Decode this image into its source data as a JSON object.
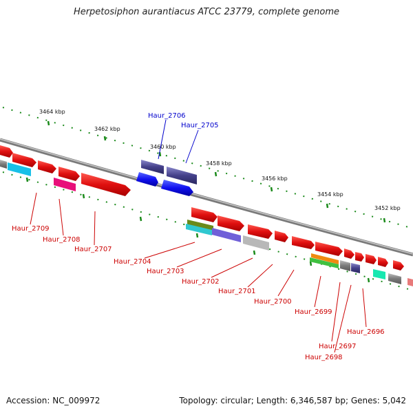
{
  "title": "Herpetosiphon aurantiacus ATCC 23779, complete genome",
  "footer": {
    "accession": "Accession: NC_009972",
    "summary": "Topology: circular; Length: 6,346,587 bp; Genes: 5,042"
  },
  "ticks": [
    {
      "label": "3464 kbp",
      "pos": 3464
    },
    {
      "label": "3462 kbp",
      "pos": 3462
    },
    {
      "label": "3460 kbp",
      "pos": 3460
    },
    {
      "label": "3458 kbp",
      "pos": 3458
    },
    {
      "label": "3456 kbp",
      "pos": 3456
    },
    {
      "label": "3454 kbp",
      "pos": 3454
    },
    {
      "label": "3452 kbp",
      "pos": 3452
    }
  ],
  "gene_labels": [
    {
      "id": "Haur_2706",
      "color": "#0000cc"
    },
    {
      "id": "Haur_2705",
      "color": "#0000cc"
    },
    {
      "id": "Haur_2709",
      "color": "#cc0000"
    },
    {
      "id": "Haur_2708",
      "color": "#cc0000"
    },
    {
      "id": "Haur_2707",
      "color": "#cc0000"
    },
    {
      "id": "Haur_2704",
      "color": "#cc0000"
    },
    {
      "id": "Haur_2703",
      "color": "#cc0000"
    },
    {
      "id": "Haur_2702",
      "color": "#cc0000"
    },
    {
      "id": "Haur_2701",
      "color": "#cc0000"
    },
    {
      "id": "Haur_2700",
      "color": "#cc0000"
    },
    {
      "id": "Haur_2699",
      "color": "#cc0000"
    },
    {
      "id": "Haur_2697",
      "color": "#cc0000"
    },
    {
      "id": "Haur_2698",
      "color": "#cc0000"
    },
    {
      "id": "Haur_2696",
      "color": "#cc0000"
    }
  ],
  "colors": {
    "backbone": "#8a8a8a",
    "tick": "#1a8a1a",
    "forward_gene": "#e8201c",
    "reverse_gene": "#2a2ae0"
  }
}
